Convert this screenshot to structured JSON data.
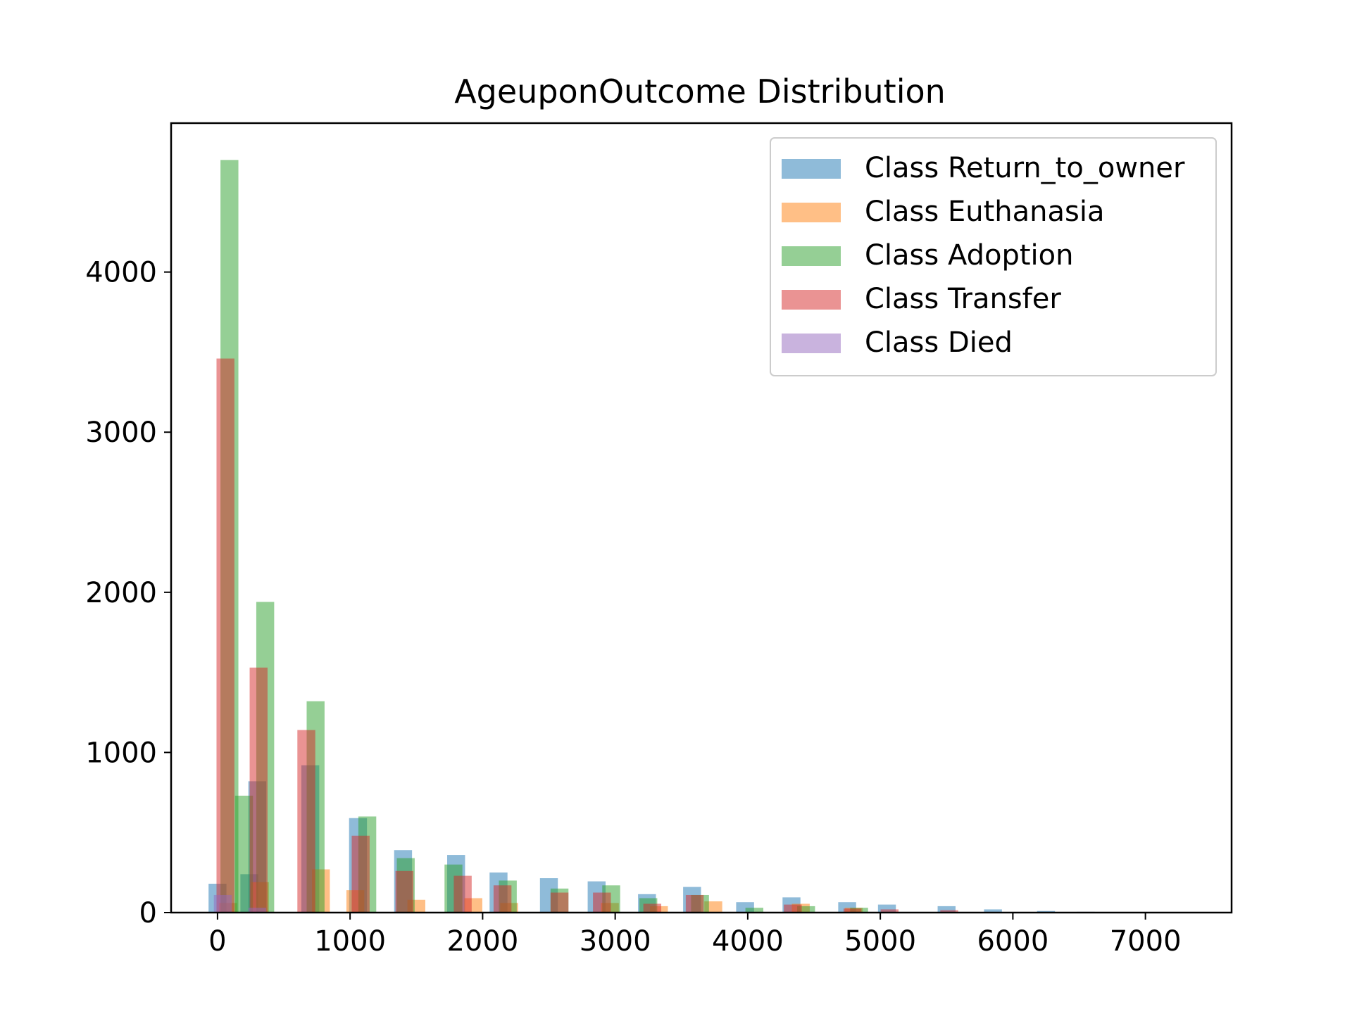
{
  "chart_data": {
    "type": "bar",
    "title": "AgeuponOutcome Distribution",
    "xlabel": "",
    "ylabel": "",
    "xlim": [
      -350,
      7650
    ],
    "ylim": [
      0,
      4930
    ],
    "x_ticks": [
      0,
      1000,
      2000,
      3000,
      4000,
      5000,
      6000,
      7000
    ],
    "y_ticks": [
      0,
      1000,
      2000,
      3000,
      4000
    ],
    "grid": false,
    "legend_placement": "top-right",
    "bar_width": 135,
    "series": [
      {
        "name": "Class Return_to_owner",
        "color": "#1f77b4",
        "points": [
          {
            "x": 0,
            "y": 180
          },
          {
            "x": 240,
            "y": 240
          },
          {
            "x": 300,
            "y": 820
          },
          {
            "x": 700,
            "y": 920
          },
          {
            "x": 1060,
            "y": 590
          },
          {
            "x": 1400,
            "y": 390
          },
          {
            "x": 1800,
            "y": 360
          },
          {
            "x": 2120,
            "y": 250
          },
          {
            "x": 2500,
            "y": 215
          },
          {
            "x": 2860,
            "y": 195
          },
          {
            "x": 3240,
            "y": 115
          },
          {
            "x": 3580,
            "y": 160
          },
          {
            "x": 3980,
            "y": 65
          },
          {
            "x": 4330,
            "y": 95
          },
          {
            "x": 4750,
            "y": 65
          },
          {
            "x": 5050,
            "y": 50
          },
          {
            "x": 5500,
            "y": 40
          },
          {
            "x": 5850,
            "y": 20
          },
          {
            "x": 6250,
            "y": 10
          },
          {
            "x": 6550,
            "y": 5
          }
        ]
      },
      {
        "name": "Class Euthanasia",
        "color": "#ff7f0e",
        "points": [
          {
            "x": 80,
            "y": 60
          },
          {
            "x": 320,
            "y": 190
          },
          {
            "x": 780,
            "y": 270
          },
          {
            "x": 1040,
            "y": 140
          },
          {
            "x": 1500,
            "y": 80
          },
          {
            "x": 1930,
            "y": 90
          },
          {
            "x": 2200,
            "y": 60
          },
          {
            "x": 2960,
            "y": 60
          },
          {
            "x": 3330,
            "y": 40
          },
          {
            "x": 3740,
            "y": 70
          },
          {
            "x": 4400,
            "y": 55
          },
          {
            "x": 4800,
            "y": 30
          }
        ]
      },
      {
        "name": "Class Adoption",
        "color": "#2ca02c",
        "points": [
          {
            "x": 90,
            "y": 4700
          },
          {
            "x": 200,
            "y": 730
          },
          {
            "x": 360,
            "y": 1940
          },
          {
            "x": 740,
            "y": 1320
          },
          {
            "x": 1130,
            "y": 600
          },
          {
            "x": 1420,
            "y": 340
          },
          {
            "x": 1780,
            "y": 300
          },
          {
            "x": 2190,
            "y": 200
          },
          {
            "x": 2580,
            "y": 150
          },
          {
            "x": 2970,
            "y": 170
          },
          {
            "x": 3250,
            "y": 90
          },
          {
            "x": 3640,
            "y": 110
          },
          {
            "x": 4050,
            "y": 30
          },
          {
            "x": 4440,
            "y": 40
          },
          {
            "x": 4840,
            "y": 30
          }
        ]
      },
      {
        "name": "Class Transfer",
        "color": "#d62728",
        "points": [
          {
            "x": 60,
            "y": 3460
          },
          {
            "x": 310,
            "y": 1530
          },
          {
            "x": 670,
            "y": 1140
          },
          {
            "x": 1080,
            "y": 480
          },
          {
            "x": 1410,
            "y": 260
          },
          {
            "x": 1850,
            "y": 230
          },
          {
            "x": 2150,
            "y": 170
          },
          {
            "x": 2580,
            "y": 125
          },
          {
            "x": 2900,
            "y": 125
          },
          {
            "x": 3280,
            "y": 55
          },
          {
            "x": 3600,
            "y": 110
          },
          {
            "x": 4340,
            "y": 50
          },
          {
            "x": 4790,
            "y": 25
          },
          {
            "x": 5070,
            "y": 20
          },
          {
            "x": 5520,
            "y": 15
          }
        ]
      },
      {
        "name": "Class Died",
        "color": "#9467bd",
        "points": [
          {
            "x": 40,
            "y": 110
          },
          {
            "x": 300,
            "y": 30
          }
        ]
      }
    ]
  }
}
